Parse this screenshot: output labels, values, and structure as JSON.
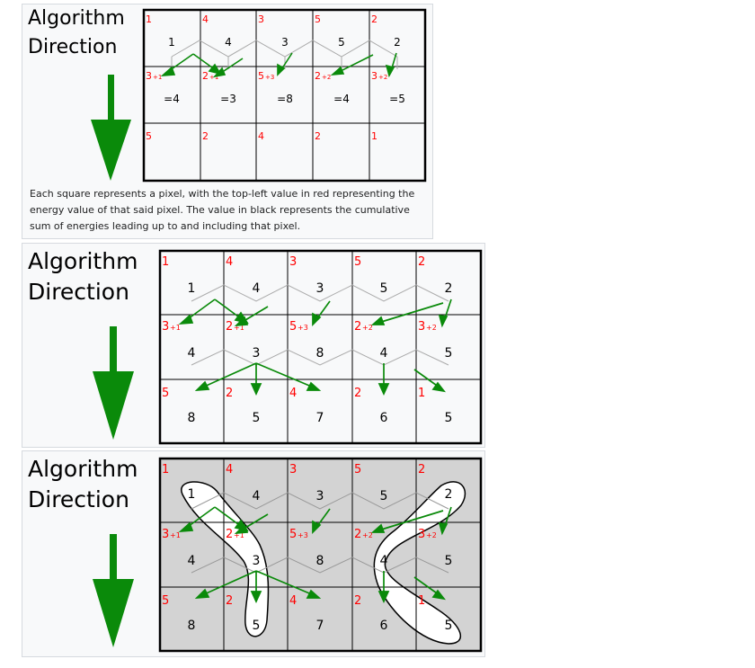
{
  "direction_label": {
    "line1": "Algorithm",
    "line2": "Direction"
  },
  "caption": "Each square represents a pixel, with the top-left value in red representing the energy value of that said pixel. The value in black represents the cumulative sum of energies leading up to and including that pixel.",
  "colors": {
    "energy": "#ff0000",
    "arrow": "#0a8a0a",
    "gray_arrow": "#aaaaaa",
    "grid": "#000000",
    "highlight_bg": "#d3d3d3"
  },
  "panels": [
    {
      "energies": [
        [
          "1",
          "4",
          "3",
          "5",
          "2"
        ],
        [
          "3",
          "2",
          "5",
          "2",
          "3"
        ],
        [
          "5",
          "2",
          "4",
          "2",
          "1"
        ]
      ],
      "row1_offsets": [
        "+1",
        "+1",
        "+3",
        "+2",
        "+2"
      ],
      "sums": [
        [
          "1",
          "4",
          "3",
          "5",
          "2"
        ],
        [
          "=4",
          "=3",
          "=8",
          "=4",
          "=5"
        ],
        [
          "",
          "",
          "",
          "",
          ""
        ]
      ]
    },
    {
      "energies": [
        [
          "1",
          "4",
          "3",
          "5",
          "2"
        ],
        [
          "3",
          "2",
          "5",
          "2",
          "3"
        ],
        [
          "5",
          "2",
          "4",
          "2",
          "1"
        ]
      ],
      "row1_offsets": [
        "+1",
        "+1",
        "+3",
        "+2",
        "+2"
      ],
      "sums": [
        [
          "1",
          "4",
          "3",
          "5",
          "2"
        ],
        [
          "4",
          "3",
          "8",
          "4",
          "5"
        ],
        [
          "8",
          "5",
          "7",
          "6",
          "5"
        ]
      ]
    },
    {
      "energies": [
        [
          "1",
          "4",
          "3",
          "5",
          "2"
        ],
        [
          "3",
          "2",
          "5",
          "2",
          "3"
        ],
        [
          "5",
          "2",
          "4",
          "2",
          "1"
        ]
      ],
      "row1_offsets": [
        "+1",
        "+1",
        "+3",
        "+2",
        "+2"
      ],
      "sums": [
        [
          "1",
          "4",
          "3",
          "5",
          "2"
        ],
        [
          "4",
          "3",
          "8",
          "4",
          "5"
        ],
        [
          "8",
          "5",
          "7",
          "6",
          "5"
        ]
      ]
    }
  ]
}
